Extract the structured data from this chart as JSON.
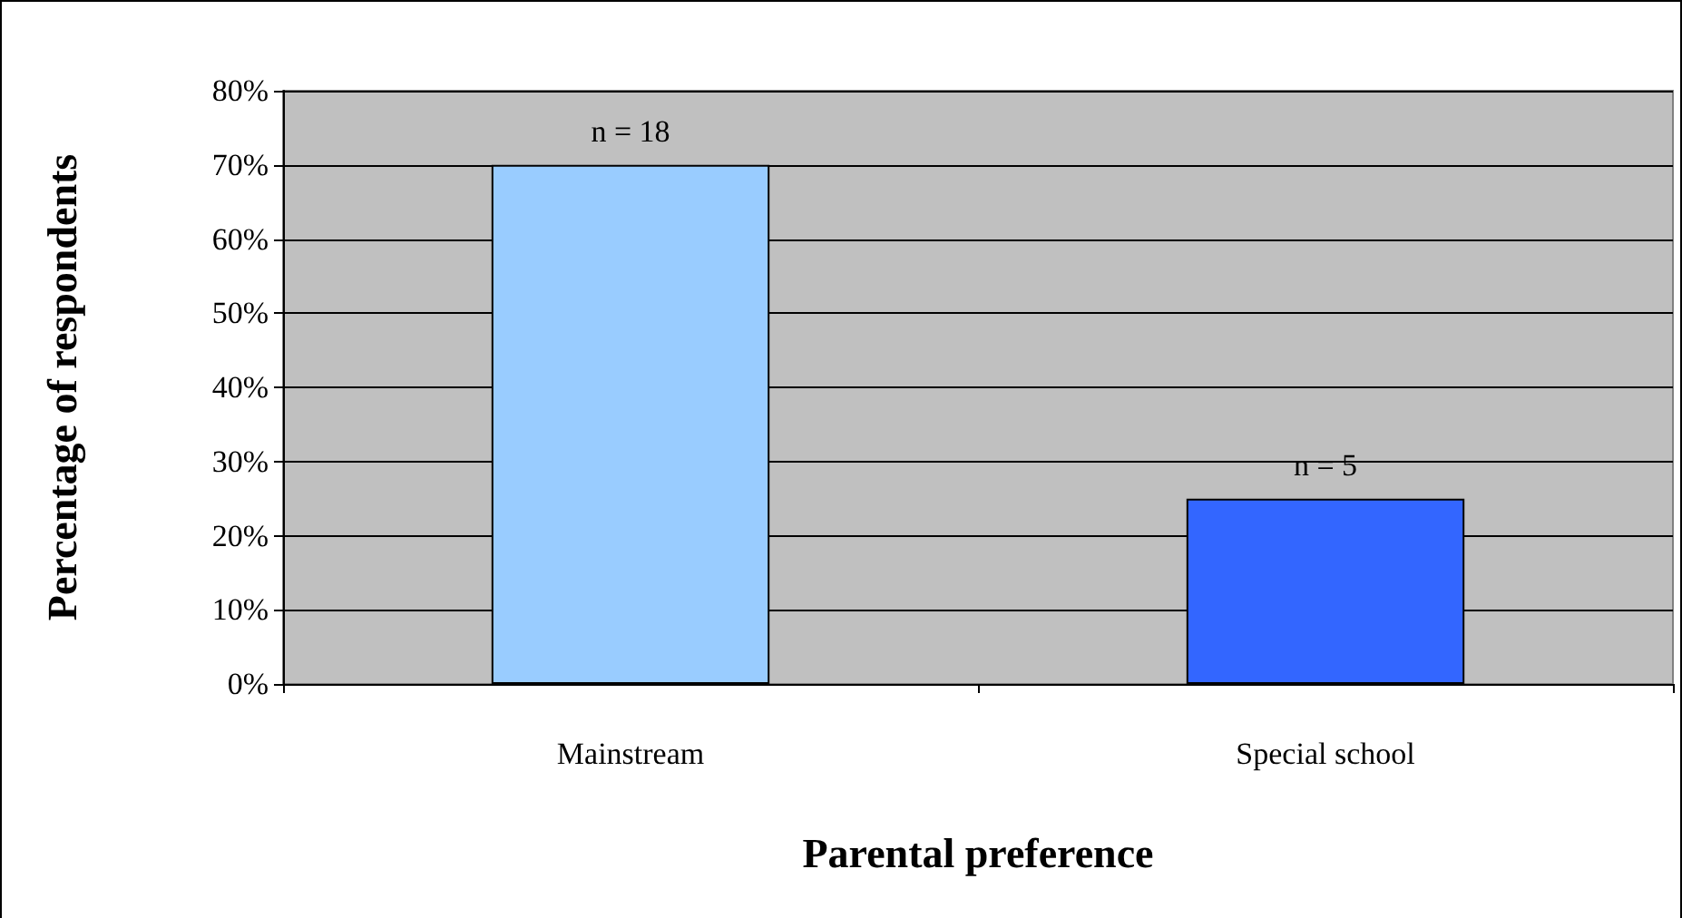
{
  "chart_data": {
    "type": "bar",
    "xlabel": "Parental preference",
    "ylabel": "Percentage of respondents",
    "categories": [
      "Mainstream",
      "Special school"
    ],
    "values": [
      70,
      25
    ],
    "colors": [
      "#99ccff",
      "#3366ff"
    ],
    "annotations": [
      {
        "text": "n = 18",
        "x": "Mainstream",
        "y": 70
      },
      {
        "text": "n = 5",
        "x": "Special school",
        "y": 25
      }
    ],
    "ylim": [
      0,
      80
    ],
    "yticks": [
      {
        "value": 0,
        "label": "0%"
      },
      {
        "value": 10,
        "label": "10%"
      },
      {
        "value": 20,
        "label": "20%"
      },
      {
        "value": 30,
        "label": "30%"
      },
      {
        "value": 40,
        "label": "40%"
      },
      {
        "value": 50,
        "label": "50%"
      },
      {
        "value": 60,
        "label": "60%"
      },
      {
        "value": 70,
        "label": "70%"
      },
      {
        "value": 80,
        "label": "80%"
      }
    ],
    "grid": "y"
  }
}
